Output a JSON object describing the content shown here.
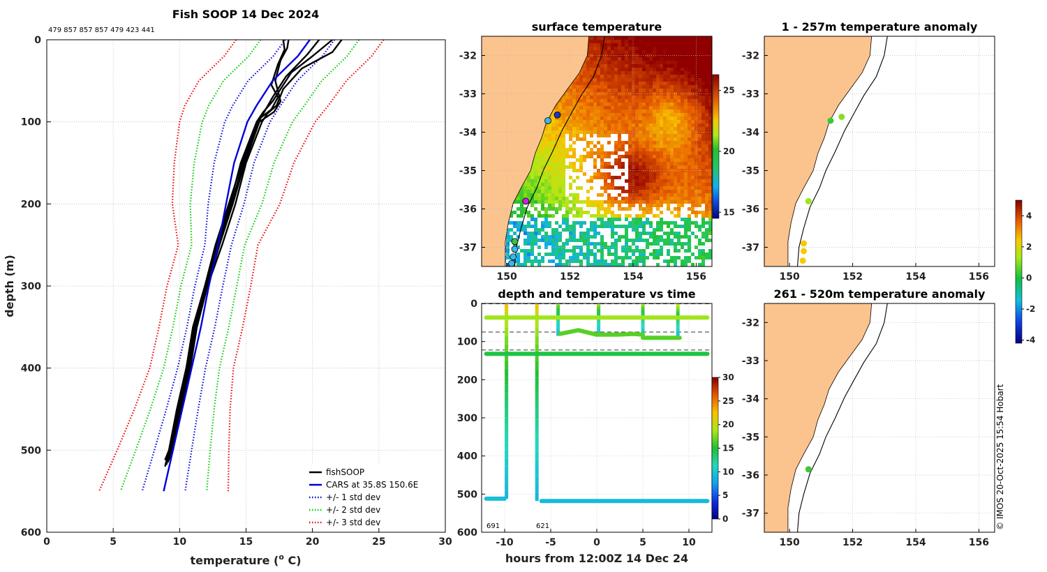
{
  "chart_data": [
    {
      "id": "profile",
      "type": "line",
      "title": "Fish SOOP 14 Dec 2024",
      "subtitle": "479 857 857 857 479 423 441",
      "xlabel": "temperature (°C)",
      "xlabel_main": "temperature (",
      "xlabel_sup": "o",
      "xlabel_tail": " C)",
      "ylabel": "depth (m)",
      "xlim": [
        0,
        30
      ],
      "ylim": [
        0,
        600
      ],
      "xticks": [
        0,
        5,
        10,
        15,
        20,
        25,
        30
      ],
      "yticks": [
        0,
        100,
        200,
        300,
        400,
        500,
        600
      ],
      "grid": true,
      "legend_position": "bottom-right",
      "legend": [
        {
          "label": "fishSOOP",
          "color": "#000000",
          "style": "solid"
        },
        {
          "label": "CARS at 35.8S 150.6E",
          "color": "#0000dd",
          "style": "solid"
        },
        {
          "label": "+/- 1 std dev",
          "color": "#0000dd",
          "style": "dotted"
        },
        {
          "label": "+/- 2 std dev",
          "color": "#00cc00",
          "style": "dotted"
        },
        {
          "label": "+/- 3 std dev",
          "color": "#ee0000",
          "style": "dotted"
        }
      ],
      "cars": {
        "depth": [
          0,
          20,
          50,
          80,
          100,
          150,
          200,
          250,
          300,
          350,
          400,
          450,
          500,
          550
        ],
        "temp": [
          19.8,
          18.9,
          17.0,
          15.8,
          15.1,
          14.1,
          13.5,
          12.9,
          12.2,
          11.6,
          10.9,
          10.2,
          9.5,
          8.8
        ]
      },
      "std": [
        1.85,
        1.85,
        1.85,
        1.8,
        1.7,
        1.5,
        1.35,
        1.0,
        1.05,
        1.05,
        1.05,
        1.2,
        1.4,
        1.62
      ],
      "profiles": [
        {
          "depth": [
            0,
            10,
            25,
            50,
            75,
            88,
            100,
            150,
            200,
            250,
            300,
            350,
            400,
            450,
            500,
            515
          ],
          "temp": [
            18.2,
            18.1,
            17.6,
            17.2,
            17.6,
            17.1,
            16.0,
            14.9,
            14.0,
            13.0,
            12.1,
            11.2,
            10.7,
            10.0,
            9.4,
            9.0
          ]
        },
        {
          "depth": [
            0,
            15,
            35,
            60,
            80,
            90,
            100,
            150,
            200,
            250,
            300,
            350,
            400,
            450,
            500,
            515
          ],
          "temp": [
            22.2,
            21.5,
            19.2,
            17.8,
            17.3,
            16.6,
            16.2,
            15.0,
            14.2,
            13.2,
            12.1,
            11.3,
            10.8,
            10.1,
            9.5,
            9.1
          ]
        },
        {
          "depth": [
            0,
            20,
            40,
            60,
            75,
            88,
            100,
            150,
            200,
            250,
            300,
            350,
            400,
            450,
            500,
            518
          ],
          "temp": [
            21.5,
            20.0,
            18.4,
            17.6,
            17.0,
            16.3,
            15.8,
            14.6,
            13.8,
            12.8,
            12.0,
            11.2,
            10.6,
            9.9,
            9.3,
            9.0
          ]
        },
        {
          "depth": [
            0,
            12,
            30,
            55,
            70,
            85,
            95,
            150,
            200,
            250,
            300,
            350,
            400,
            450,
            500,
            520
          ],
          "temp": [
            17.8,
            17.9,
            17.4,
            16.9,
            17.4,
            16.9,
            16.1,
            14.8,
            13.9,
            12.9,
            12.0,
            11.1,
            10.5,
            9.8,
            9.2,
            8.9
          ]
        },
        {
          "depth": [
            0,
            18,
            45,
            70,
            90,
            100,
            150,
            200,
            250,
            300,
            350,
            400,
            450,
            500,
            512
          ],
          "temp": [
            20.5,
            19.6,
            18.0,
            17.0,
            16.3,
            15.9,
            14.7,
            13.7,
            12.7,
            11.9,
            11.0,
            10.5,
            9.8,
            9.2,
            8.9
          ]
        }
      ]
    },
    {
      "id": "timeseries",
      "type": "scatter",
      "title": "depth and temperature vs time",
      "xlabel": "hours from 12:00Z 14 Dec 24",
      "xlim": [
        -12.5,
        12.5
      ],
      "ylim": [
        0,
        600
      ],
      "xticks": [
        -10,
        -5,
        0,
        5,
        10
      ],
      "yticks": [
        0,
        100,
        200,
        300,
        400,
        500,
        600
      ],
      "hlines": [
        0,
        75,
        122
      ],
      "annotations": [
        {
          "x": -11.4,
          "text": "691"
        },
        {
          "x": -6.3,
          "text": "621"
        }
      ],
      "colorbar": {
        "ticks": [
          0,
          5,
          10,
          15,
          20,
          25,
          30
        ],
        "min": 0,
        "max": 30
      },
      "tracks": [
        {
          "hours": [
            -12,
            12
          ],
          "depth": [
            37,
            37
          ],
          "temp": 18.5
        },
        {
          "hours": [
            -12,
            12
          ],
          "depth": [
            132,
            132
          ],
          "temp": 14.5
        },
        {
          "hours": [
            -12,
            -10
          ],
          "depth": [
            512,
            512
          ],
          "temp": 9.5
        },
        {
          "hours": [
            -6.0,
            12
          ],
          "depth": [
            518,
            518
          ],
          "temp": 9.2
        },
        {
          "hours": [
            -4,
            -2,
            0,
            2,
            4,
            5
          ],
          "depth": [
            80,
            70,
            82,
            82,
            80,
            82
          ],
          "temp": 16.5
        },
        {
          "hours": [
            5,
            9
          ],
          "depth": [
            90,
            90
          ],
          "temp": 16.5
        }
      ],
      "casts": [
        {
          "hour": -9.8,
          "max_depth": 512,
          "surface_temp": 22
        },
        {
          "hour": -6.5,
          "max_depth": 518,
          "surface_temp": 22
        },
        {
          "hour": -4.2,
          "max_depth": 85,
          "surface_temp": 18.5
        },
        {
          "hour": 0.2,
          "max_depth": 85,
          "surface_temp": 19
        },
        {
          "hour": 5.0,
          "max_depth": 90,
          "surface_temp": 19
        },
        {
          "hour": 8.8,
          "max_depth": 90,
          "surface_temp": 21
        }
      ]
    },
    {
      "id": "sst",
      "type": "heatmap",
      "title": "surface temperature",
      "xlim": [
        149.2,
        156.5
      ],
      "ylim": [
        -37.5,
        -31.5
      ],
      "xticks": [
        150,
        152,
        154,
        156
      ],
      "yticks": [
        -32,
        -33,
        -34,
        -35,
        -36,
        -37
      ],
      "colorbar": {
        "ticks": [
          15,
          20,
          25
        ],
        "min": 14.5,
        "max": 26.3
      },
      "markers": [
        {
          "lon": 151.6,
          "lat": -33.55,
          "color": "#1838c8"
        },
        {
          "lon": 151.3,
          "lat": -33.7,
          "color": "#38b8e8"
        },
        {
          "lon": 150.6,
          "lat": -35.8,
          "color": "#d020e0"
        },
        {
          "lon": 150.25,
          "lat": -36.85,
          "color": "#40c040"
        },
        {
          "lon": 150.25,
          "lat": -37.05,
          "color": "#38b8e8"
        },
        {
          "lon": 150.2,
          "lat": -37.25,
          "color": "#38b8e8"
        },
        {
          "lon": 150.15,
          "lat": -37.42,
          "color": "#38b8e8"
        }
      ]
    },
    {
      "id": "anom_upper",
      "type": "scatter",
      "title": "1 - 257m temperature anomaly",
      "xlim": [
        149.2,
        156.5
      ],
      "ylim": [
        -37.5,
        -31.5
      ],
      "xticks": [
        150,
        152,
        154,
        156
      ],
      "yticks": [
        -32,
        -33,
        -34,
        -35,
        -36,
        -37
      ],
      "points": [
        {
          "lon": 151.65,
          "lat": -33.6,
          "anomaly": 1.0
        },
        {
          "lon": 151.3,
          "lat": -33.7,
          "anomaly": 0.3
        },
        {
          "lon": 150.6,
          "lat": -35.8,
          "anomaly": 1.2
        },
        {
          "lon": 150.45,
          "lat": -36.9,
          "anomaly": 2.4
        },
        {
          "lon": 150.45,
          "lat": -37.1,
          "anomaly": 2.4
        },
        {
          "lon": 150.42,
          "lat": -37.35,
          "anomaly": 2.4
        }
      ]
    },
    {
      "id": "anom_lower",
      "type": "scatter",
      "title": "261 - 520m temperature anomaly",
      "xlim": [
        149.2,
        156.5
      ],
      "ylim": [
        -37.5,
        -31.5
      ],
      "xticks": [
        150,
        152,
        154,
        156
      ],
      "yticks": [
        -32,
        -33,
        -34,
        -35,
        -36,
        -37
      ],
      "points": [
        {
          "lon": 150.6,
          "lat": -35.85,
          "anomaly": 0.3
        }
      ]
    },
    {
      "id": "anomaly_colorbar",
      "type": "colorbar",
      "ticks": [
        4,
        2,
        0,
        -2,
        -4
      ],
      "min": -4.2,
      "max": 5.0
    }
  ],
  "credit": "© IMOS 20-Oct-2025 15:54 Hobart",
  "colors": {
    "land": "#fbc48e",
    "cars_blue": "#0000dd",
    "std1": "#0000dd",
    "std2": "#00cc00",
    "std3": "#ee0000"
  }
}
